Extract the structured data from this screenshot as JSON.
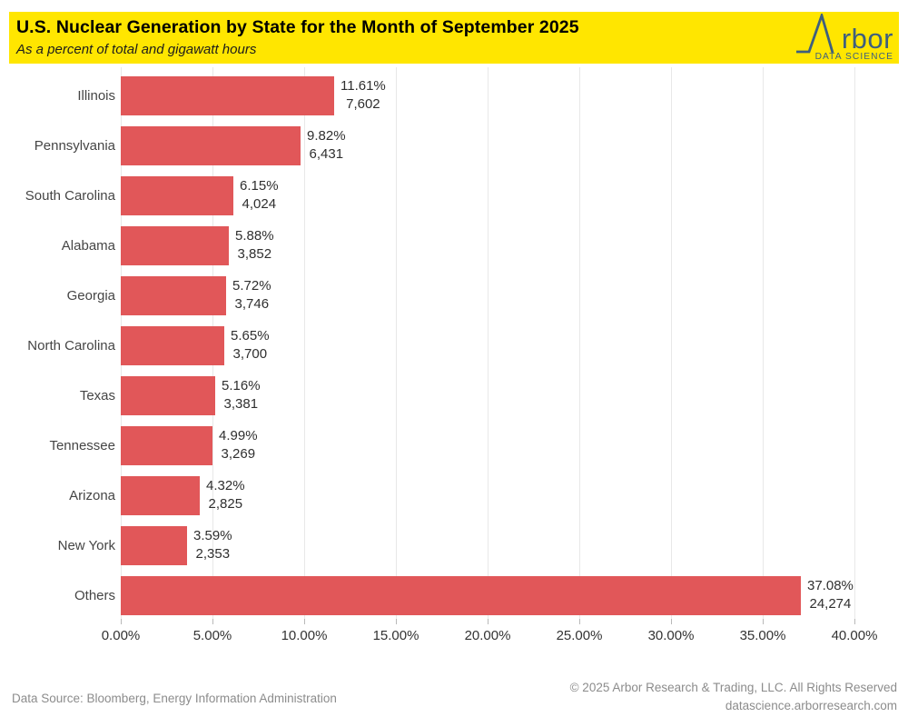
{
  "header": {
    "title": "U.S. Nuclear Generation by State for the Month of September 2025",
    "subtitle": "As a percent of total and gigawatt hours",
    "background": "#FFE600",
    "logo": {
      "brand": "rbor",
      "tagline": "DATA SCIENCE",
      "color": "#3E5F7E"
    }
  },
  "chart_data": {
    "type": "bar",
    "orientation": "horizontal",
    "title": "U.S. Nuclear Generation by State for the Month of September 2025",
    "subtitle": "As a percent of total and gigawatt hours",
    "categories": [
      "Illinois",
      "Pennsylvania",
      "South Carolina",
      "Alabama",
      "Georgia",
      "North Carolina",
      "Texas",
      "Tennessee",
      "Arizona",
      "New York",
      "Others"
    ],
    "series": [
      {
        "name": "Percent of total",
        "unit": "%",
        "values": [
          11.61,
          9.82,
          6.15,
          5.88,
          5.72,
          5.65,
          5.16,
          4.99,
          4.32,
          3.59,
          37.08
        ]
      },
      {
        "name": "Generation",
        "unit": "gigawatt hours",
        "values": [
          7602,
          6431,
          4024,
          3852,
          3746,
          3700,
          3381,
          3269,
          2825,
          2353,
          24274
        ]
      }
    ],
    "bar_value_labels": [
      [
        "11.61%",
        "7,602"
      ],
      [
        "9.82%",
        "6,431"
      ],
      [
        "6.15%",
        "4,024"
      ],
      [
        "5.88%",
        "3,852"
      ],
      [
        "5.72%",
        "3,746"
      ],
      [
        "5.65%",
        "3,700"
      ],
      [
        "5.16%",
        "3,381"
      ],
      [
        "4.99%",
        "3,269"
      ],
      [
        "4.32%",
        "2,825"
      ],
      [
        "3.59%",
        "2,353"
      ],
      [
        "37.08%",
        "24,274"
      ]
    ],
    "x_axis": {
      "ticks": [
        "0.00%",
        "5.00%",
        "10.00%",
        "15.00%",
        "20.00%",
        "25.00%",
        "30.00%",
        "35.00%",
        "40.00%"
      ],
      "min": 0,
      "max": 40,
      "grid": true
    },
    "bar_color": "#E15759",
    "legend": "none"
  },
  "footer": {
    "source": "Data Source: Bloomberg, Energy Information Administration",
    "copyright": "© 2025 Arbor Research & Trading, LLC. All Rights Reserved",
    "website": "datascience.arborresearch.com"
  }
}
